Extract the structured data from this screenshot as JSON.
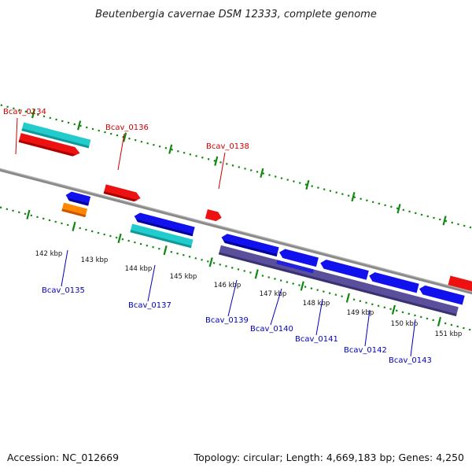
{
  "title": "Beutenbergia cavernae DSM 12333, complete genome",
  "footer": {
    "accession": "Accession: NC_012669",
    "summary": "Topology: circular; Length: 4,669,183 bp; Genes: 4,250"
  },
  "colors": {
    "forward_label": "#cc0000",
    "reverse_label": "#0000bb",
    "red_gene": "#ee1111",
    "blue_gene": "#1111ee",
    "cyan_gene": "#22cccc",
    "orange_gene": "#ff8800",
    "purple_gene": "#5a4f9a",
    "tick_green": "#118811",
    "backbone": "#888888"
  },
  "tick_labels": [
    "142 kbp",
    "143 kbp",
    "144 kbp",
    "145 kbp",
    "146 kbp",
    "147 kbp",
    "148 kbp",
    "149 kbp",
    "150 kbp",
    "151 kbp"
  ],
  "gene_labels": [
    {
      "text": "Bcav_0134",
      "strand": "forward"
    },
    {
      "text": "Bcav_0136",
      "strand": "forward"
    },
    {
      "text": "Bcav_0138",
      "strand": "forward"
    },
    {
      "text": "Bcav_0135",
      "strand": "reverse"
    },
    {
      "text": "Bcav_0137",
      "strand": "reverse"
    },
    {
      "text": "Bcav_0139",
      "strand": "reverse"
    },
    {
      "text": "Bcav_0140",
      "strand": "reverse"
    },
    {
      "text": "Bcav_0141",
      "strand": "reverse"
    },
    {
      "text": "Bcav_0142",
      "strand": "reverse"
    },
    {
      "text": "Bcav_0143",
      "strand": "reverse"
    }
  ]
}
